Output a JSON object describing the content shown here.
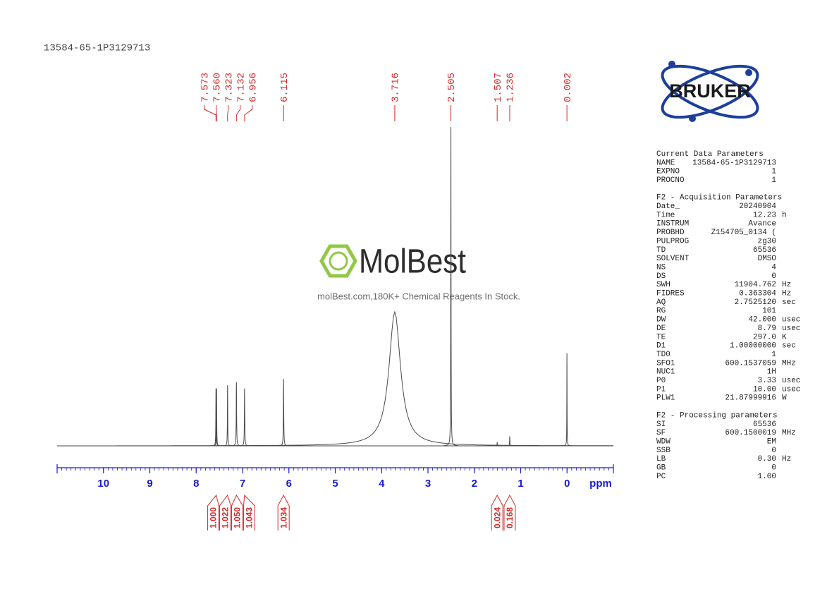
{
  "chart_data": {
    "type": "nmr",
    "title": "13584-65-1P3129713",
    "x_label": "ppm",
    "xlim": [
      11,
      -1
    ],
    "xticks": [
      10,
      9,
      8,
      7,
      6,
      5,
      4,
      3,
      2,
      1,
      0
    ],
    "minor_ticks": true,
    "color": "#4a4a4a",
    "axis_color": "#1a1acc",
    "label_color": "#d42a2a",
    "peaks": {
      "values": [
        7.573,
        7.56,
        7.323,
        7.132,
        6.956,
        6.115,
        3.716,
        2.505,
        1.507,
        1.236,
        0.002
      ],
      "value_labels": [
        "7.573",
        "7.560",
        "7.323",
        "7.132",
        "6.956",
        "6.115",
        "3.716",
        "2.505",
        "1.507",
        "1.236",
        "0.002"
      ],
      "heights": [
        18,
        18,
        19,
        20,
        18,
        21,
        42,
        100,
        1,
        3,
        29
      ],
      "widths": [
        0.004,
        0.004,
        0.004,
        0.005,
        0.005,
        0.005,
        0.15,
        0.004,
        0.004,
        0.004,
        0.003
      ]
    },
    "integrals": {
      "centers": [
        7.567,
        7.323,
        7.132,
        6.956,
        6.115,
        1.507,
        1.236
      ],
      "values": [
        1,
        1.022,
        1.05,
        1.043,
        1.034,
        0.024,
        0.168
      ],
      "value_labels": [
        "1.000",
        "1.022",
        "1.050",
        "1.043",
        "1.034",
        "0.024",
        "0.168"
      ]
    }
  },
  "logo": "BRUKER",
  "watermark": {
    "brand": "MolBest",
    "tagline": "molBest.com,180K+ Chemical Reagents In Stock."
  },
  "parameters": [
    {
      "title": "Current Data Parameters",
      "rows": [
        [
          "NAME",
          "13584-65-1P3129713"
        ],
        [
          "EXPNO",
          "1"
        ],
        [
          "PROCNO",
          "1"
        ]
      ]
    },
    {
      "title": "F2 - Acquisition Parameters",
      "rows": [
        [
          "Date_",
          "20240904"
        ],
        [
          "Time",
          "12.23",
          "h"
        ],
        [
          "INSTRUM",
          "Avance"
        ],
        [
          "PROBHD",
          "Z154705_0134 ("
        ],
        [
          "PULPROG",
          "zg30"
        ],
        [
          "TD",
          "65536"
        ],
        [
          "SOLVENT",
          "DMSO"
        ],
        [
          "NS",
          "4"
        ],
        [
          "DS",
          "0"
        ],
        [
          "SWH",
          "11904.762",
          "Hz"
        ],
        [
          "FIDRES",
          "0.363304",
          "Hz"
        ],
        [
          "AQ",
          "2.7525120",
          "sec"
        ],
        [
          "RG",
          "101"
        ],
        [
          "DW",
          "42.000",
          "usec"
        ],
        [
          "DE",
          "8.79",
          "usec"
        ],
        [
          "TE",
          "297.0",
          "K"
        ],
        [
          "D1",
          "1.00000000",
          "sec"
        ],
        [
          "TD0",
          "1"
        ],
        [
          "SFO1",
          "600.1537059",
          "MHz"
        ],
        [
          "NUC1",
          "1H"
        ],
        [
          "P0",
          "3.33",
          "usec"
        ],
        [
          "P1",
          "10.00",
          "usec"
        ],
        [
          "PLW1",
          "21.87999916",
          "W"
        ]
      ]
    },
    {
      "title": "F2 - Processing parameters",
      "rows": [
        [
          "SI",
          "65536"
        ],
        [
          "SF",
          "600.1500019",
          "MHz"
        ],
        [
          "WDW",
          "EM"
        ],
        [
          "SSB",
          "0"
        ],
        [
          "LB",
          "0.30",
          "Hz"
        ],
        [
          "GB",
          "0"
        ],
        [
          "PC",
          "1.00"
        ]
      ]
    }
  ]
}
